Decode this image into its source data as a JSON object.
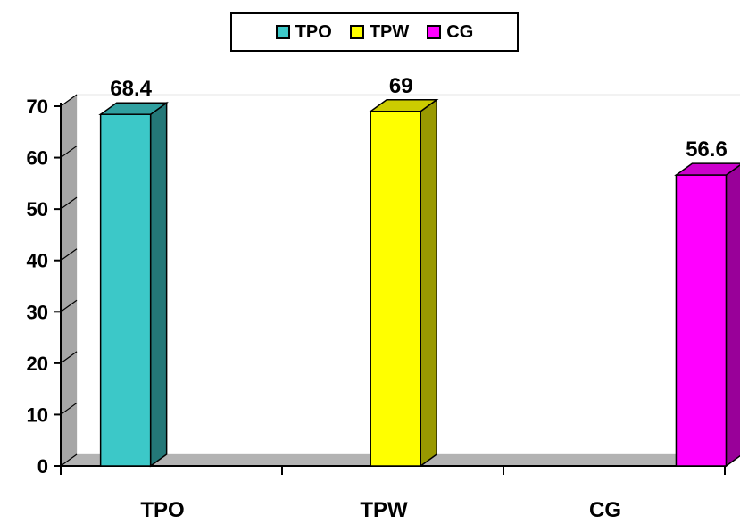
{
  "chart_data": {
    "type": "bar",
    "categories": [
      "TPO",
      "TPW",
      "CG"
    ],
    "values": [
      68.4,
      69,
      56.6
    ],
    "value_labels": [
      "68.4",
      "69",
      "56.6"
    ],
    "colors": [
      "#3cc8c8",
      "#ffff00",
      "#ff00ff"
    ],
    "title": "",
    "xlabel": "",
    "ylabel": "",
    "ylim": [
      0,
      70
    ],
    "yticks": [
      0,
      10,
      20,
      30,
      40,
      50,
      60,
      70
    ],
    "grid": false,
    "legend": {
      "position": "top-center",
      "entries": [
        {
          "label": "TPO",
          "color": "#3cc8c8"
        },
        {
          "label": "TPW",
          "color": "#ffff00"
        },
        {
          "label": "CG",
          "color": "#ff00ff"
        }
      ]
    },
    "style": "3d"
  }
}
